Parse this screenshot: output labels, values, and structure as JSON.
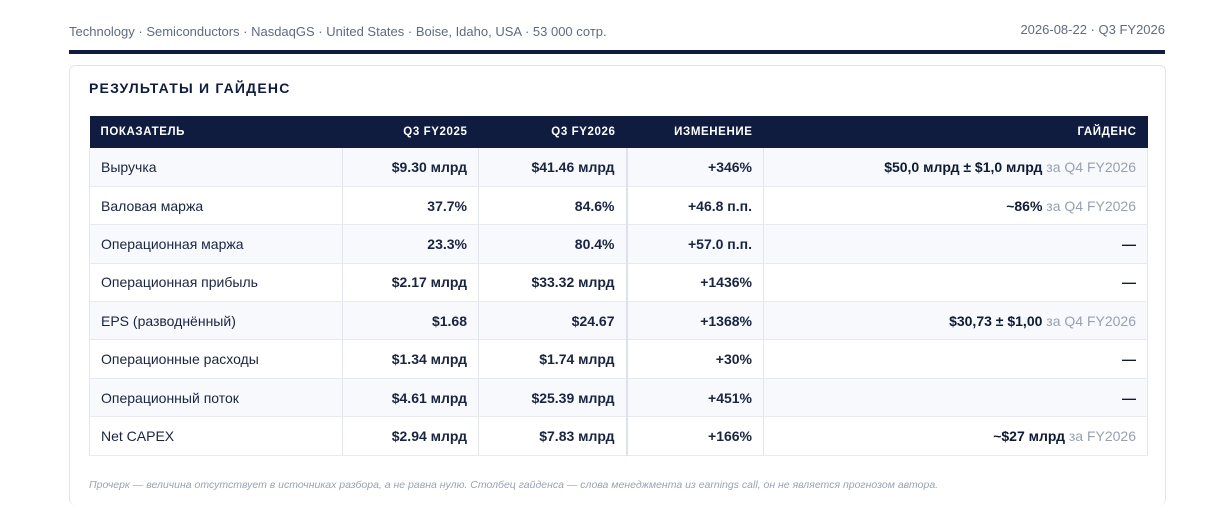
{
  "header": {
    "meta_left": "Technology · Semiconductors · NasdaqGS · United States · Boise, Idaho, USA · 53 000 сотр.",
    "meta_right": "2026-08-22 · Q3 FY2026"
  },
  "section": {
    "title": "Результаты и гайденс"
  },
  "table": {
    "headers": {
      "metric": "ПОКАЗАТЕЛЬ",
      "prev": "Q3 FY2025",
      "curr": "Q3 FY2026",
      "change": "ИЗМЕНЕНИЕ",
      "guidance": "ГАЙДЕНС"
    },
    "rows": [
      {
        "metric": "Выручка",
        "prev": "$9.30 млрд",
        "curr": "$41.46 млрд",
        "change": "+346%",
        "guidance_value": "$50,0 млрд ± $1,0 млрд",
        "guidance_period": " за Q4 FY2026"
      },
      {
        "metric": "Валовая маржа",
        "prev": "37.7%",
        "curr": "84.6%",
        "change": "+46.8 п.п.",
        "guidance_value": "~86%",
        "guidance_period": " за Q4 FY2026"
      },
      {
        "metric": "Операционная маржа",
        "prev": "23.3%",
        "curr": "80.4%",
        "change": "+57.0 п.п.",
        "guidance_value": "—",
        "guidance_period": ""
      },
      {
        "metric": "Операционная прибыль",
        "prev": "$2.17 млрд",
        "curr": "$33.32 млрд",
        "change": "+1436%",
        "guidance_value": "—",
        "guidance_period": ""
      },
      {
        "metric": "EPS (разводнённый)",
        "prev": "$1.68",
        "curr": "$24.67",
        "change": "+1368%",
        "guidance_value": "$30,73 ± $1,00",
        "guidance_period": " за Q4 FY2026"
      },
      {
        "metric": "Операционные расходы",
        "prev": "$1.34 млрд",
        "curr": "$1.74 млрд",
        "change": "+30%",
        "guidance_value": "—",
        "guidance_period": ""
      },
      {
        "metric": "Операционный поток",
        "prev": "$4.61 млрд",
        "curr": "$25.39 млрд",
        "change": "+451%",
        "guidance_value": "—",
        "guidance_period": ""
      },
      {
        "metric": "Net CAPEX",
        "prev": "$2.94 млрд",
        "curr": "$7.83 млрд",
        "change": "+166%",
        "guidance_value": "~$27 млрд",
        "guidance_period": " за FY2026"
      }
    ]
  },
  "footnote": "Прочерк — величина отсутствует в источниках разбора, а не равна нулю. Столбец гайденса — слова менеджмента из earnings call, он не является прогнозом автора.",
  "colors": {
    "navy": "#0f1c3f",
    "positive": "#1a9f45",
    "muted": "#98a1b1"
  }
}
